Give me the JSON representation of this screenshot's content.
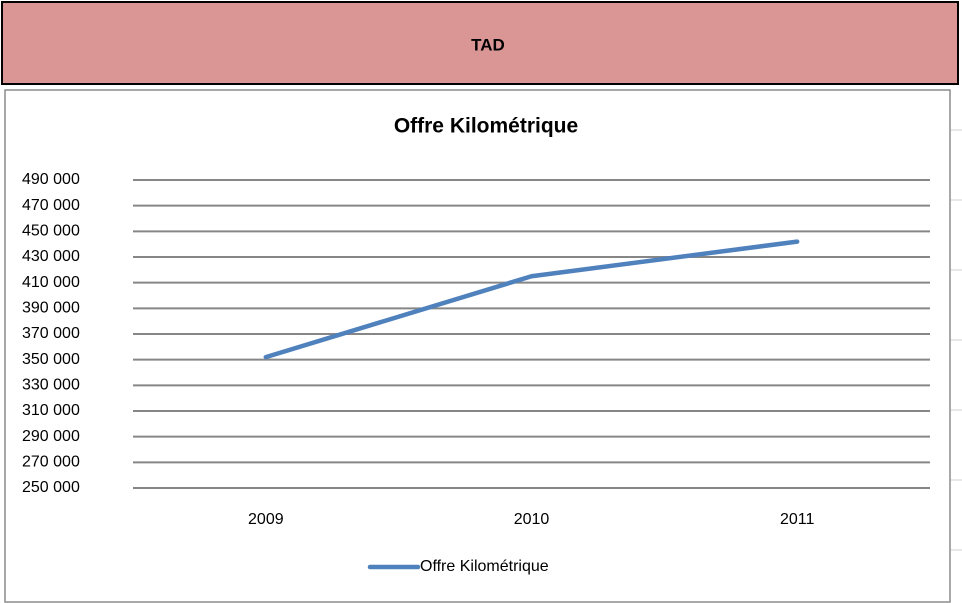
{
  "header": {
    "title": "TAD"
  },
  "chart_data": {
    "type": "line",
    "title": "Offre Kilométrique",
    "categories": [
      "2009",
      "2010",
      "2011"
    ],
    "series": [
      {
        "name": "Offre Kilométrique",
        "color": "#4f81bd",
        "values": [
          352000,
          415000,
          442000
        ]
      }
    ],
    "ylim": [
      250000,
      490000
    ],
    "yticks": [
      {
        "value": 250000,
        "label": "250 000"
      },
      {
        "value": 270000,
        "label": "270 000"
      },
      {
        "value": 290000,
        "label": "290 000"
      },
      {
        "value": 310000,
        "label": "310 000"
      },
      {
        "value": 330000,
        "label": "330 000"
      },
      {
        "value": 350000,
        "label": "350 000"
      },
      {
        "value": 370000,
        "label": "370 000"
      },
      {
        "value": 390000,
        "label": "390 000"
      },
      {
        "value": 410000,
        "label": "410 000"
      },
      {
        "value": 430000,
        "label": "430 000"
      },
      {
        "value": 450000,
        "label": "450 000"
      },
      {
        "value": 470000,
        "label": "470 000"
      },
      {
        "value": 490000,
        "label": "490 000"
      }
    ],
    "grid": true,
    "legend": "bottom"
  }
}
